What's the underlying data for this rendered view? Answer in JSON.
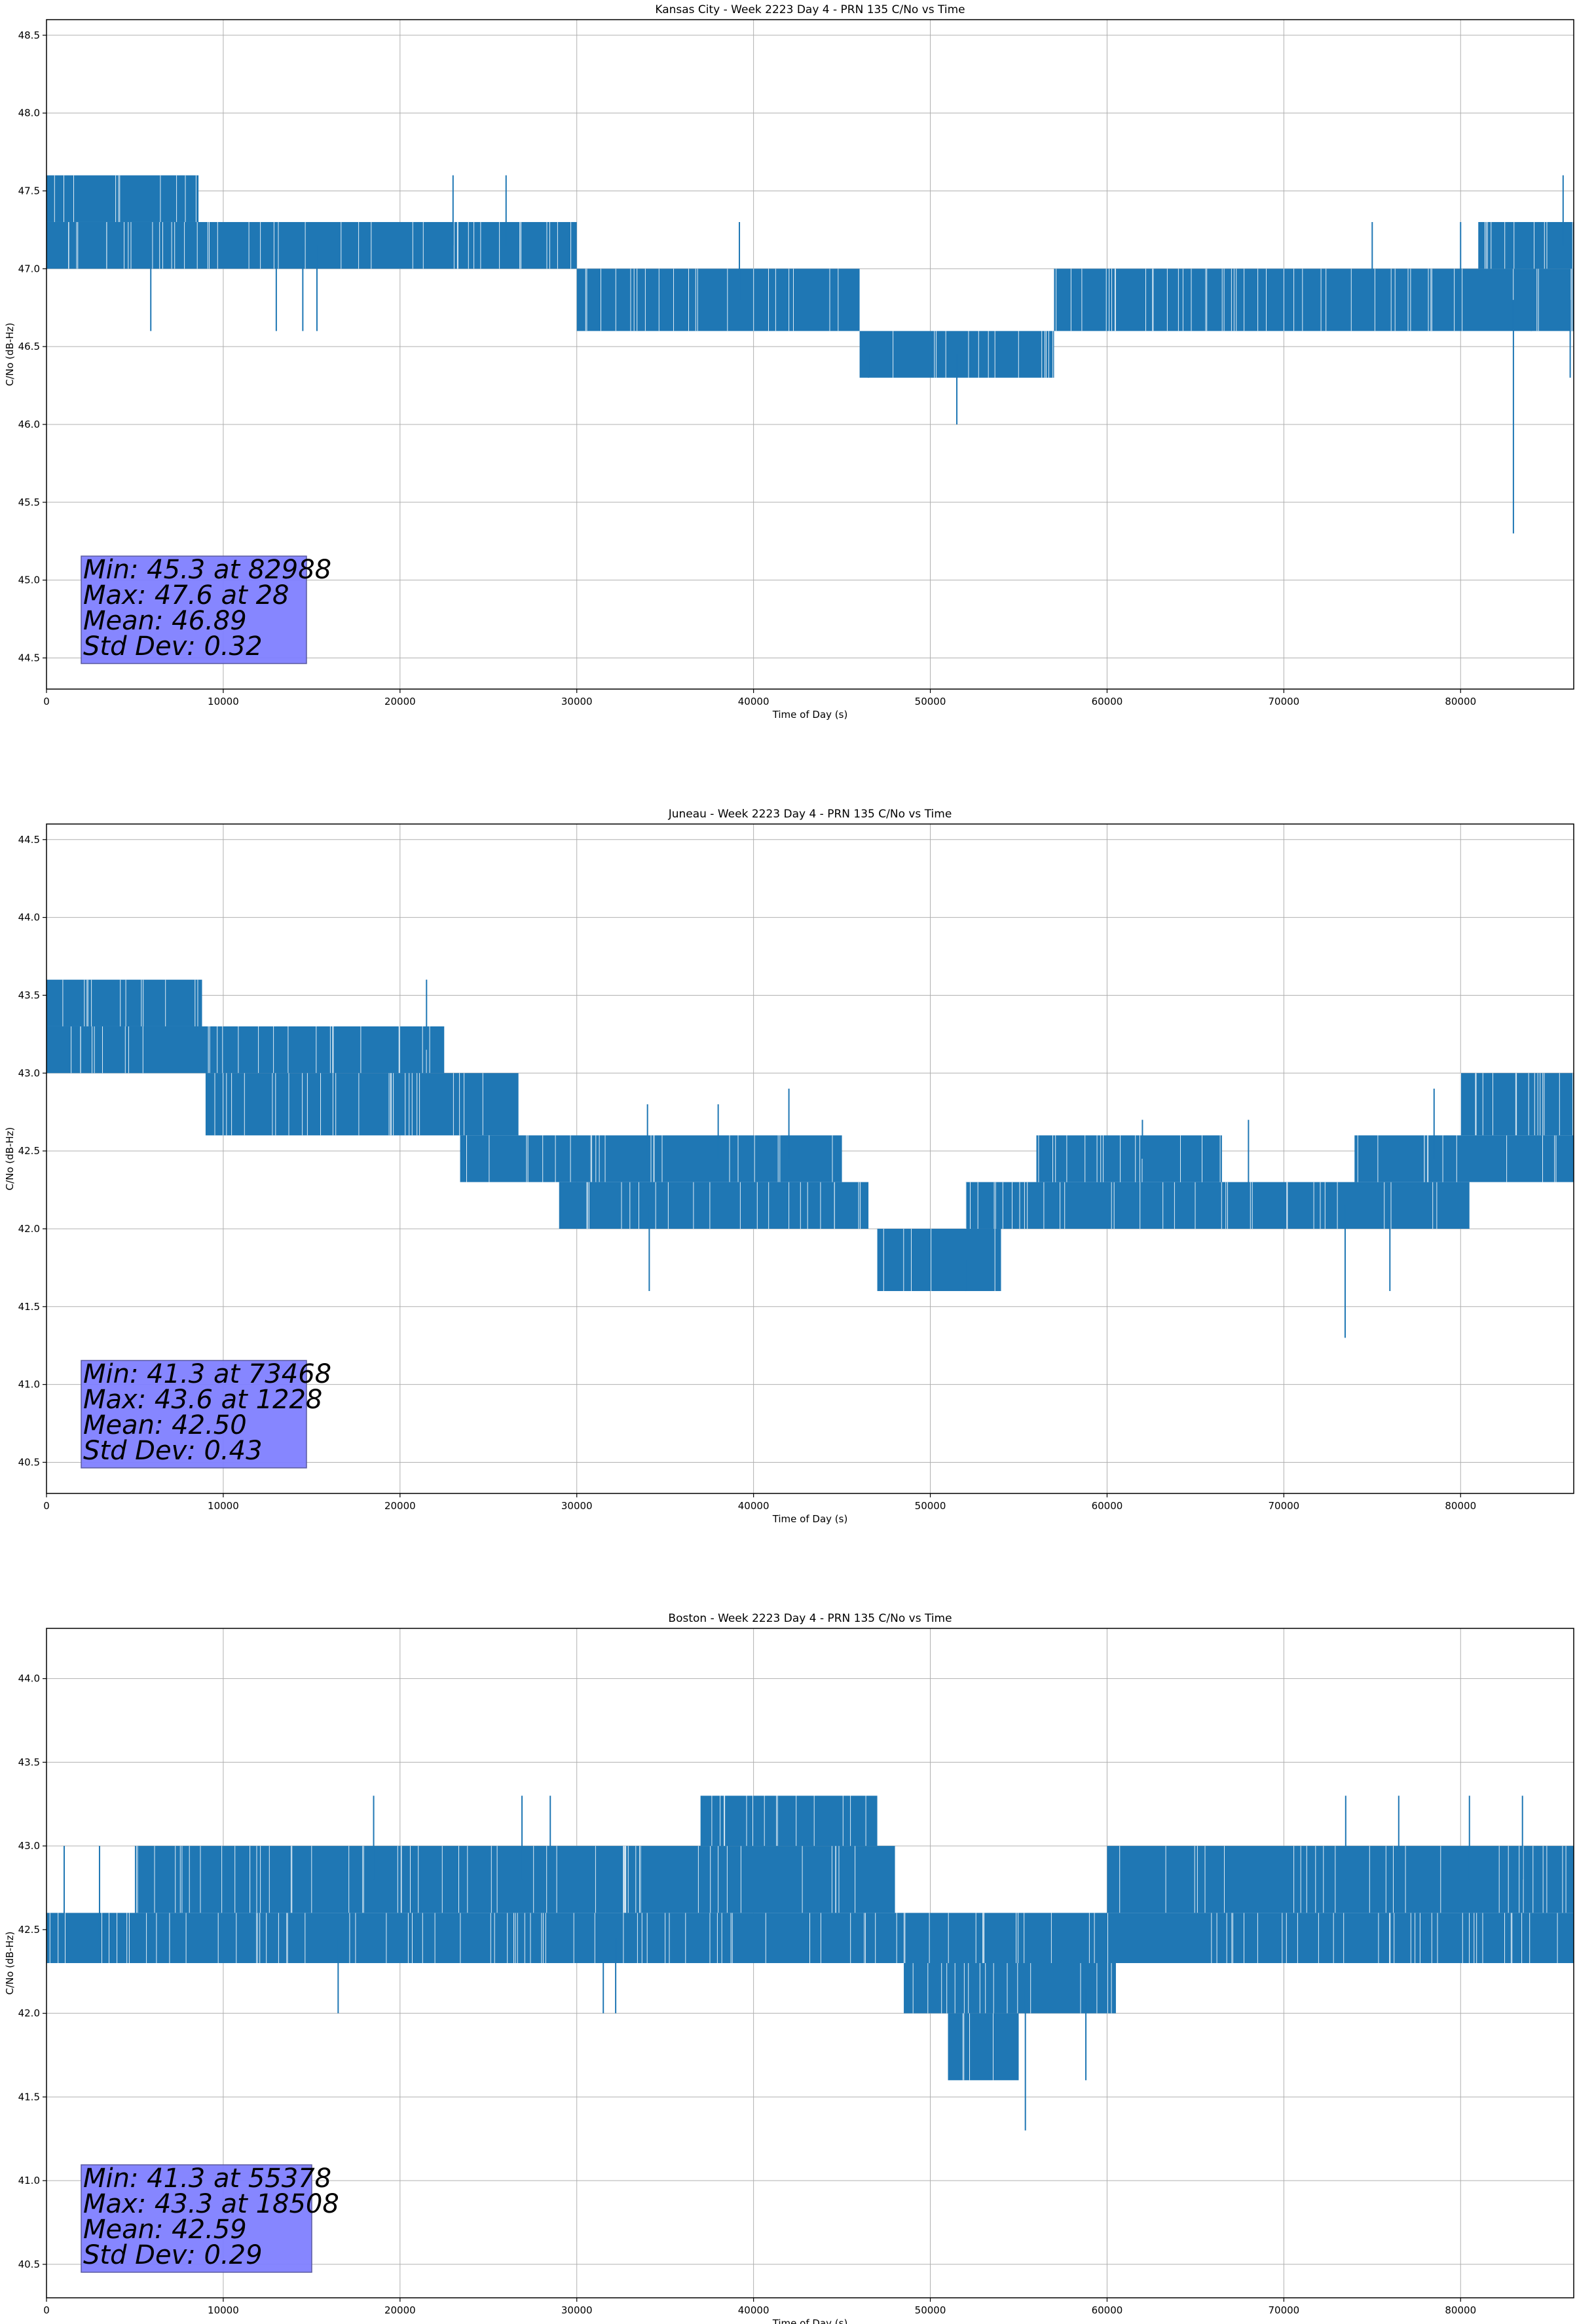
{
  "colors": {
    "line": "#1f77b4",
    "grid": "#b0b0b0",
    "stats_box_fill": "#8080ff",
    "stats_box_edge": "#5a5aa0"
  },
  "chart_data": [
    {
      "type": "line",
      "title": "Kansas City - Week 2223 Day 4 - PRN 135 C/No vs Time",
      "xlabel": "Time of Day (s)",
      "ylabel": "C/No (dB-Hz)",
      "xlim": [
        0,
        86400
      ],
      "ylim": [
        44.3,
        48.6
      ],
      "xticks": [
        0,
        10000,
        20000,
        30000,
        40000,
        50000,
        60000,
        70000,
        80000
      ],
      "yticks": [
        44.5,
        45.0,
        45.5,
        46.0,
        46.5,
        47.0,
        47.5,
        48.0,
        48.5
      ],
      "ytick_labels": [
        "44.5",
        "45.0",
        "45.5",
        "46.0",
        "46.5",
        "47.0",
        "47.5",
        "48.0",
        "48.5"
      ],
      "grid": true,
      "bands": [
        {
          "x": [
            0,
            8600
          ],
          "lo": 47.3,
          "hi": 47.6
        },
        {
          "x": [
            0,
            30000
          ],
          "lo": 47.0,
          "hi": 47.3
        },
        {
          "x": [
            30000,
            46000
          ],
          "lo": 46.6,
          "hi": 47.0
        },
        {
          "x": [
            46000,
            57000
          ],
          "lo": 46.3,
          "hi": 46.6
        },
        {
          "x": [
            57000,
            86400
          ],
          "lo": 46.6,
          "hi": 47.0
        },
        {
          "x": [
            81000,
            86400
          ],
          "lo": 47.0,
          "hi": 47.3
        }
      ],
      "spikes": [
        {
          "x": 5900,
          "y": 46.6
        },
        {
          "x": 13000,
          "y": 46.6
        },
        {
          "x": 14500,
          "y": 46.6
        },
        {
          "x": 15300,
          "y": 46.6
        },
        {
          "x": 23000,
          "y": 47.6
        },
        {
          "x": 26000,
          "y": 47.6
        },
        {
          "x": 39200,
          "y": 47.3
        },
        {
          "x": 46500,
          "y": 46.3
        },
        {
          "x": 51500,
          "y": 46.0
        },
        {
          "x": 75000,
          "y": 47.3
        },
        {
          "x": 80000,
          "y": 47.3
        },
        {
          "x": 82988,
          "y": 45.3
        },
        {
          "x": 84000,
          "y": 46.6
        },
        {
          "x": 85800,
          "y": 47.6
        },
        {
          "x": 86200,
          "y": 46.3
        }
      ],
      "stats": [
        "Min: 45.3 at 82988",
        "Max: 47.6 at 28",
        "Mean: 46.89",
        "Std Dev: 0.32"
      ]
    },
    {
      "type": "line",
      "title": "Juneau - Week 2223 Day 4 - PRN 135 C/No vs Time",
      "xlabel": "Time of Day (s)",
      "ylabel": "C/No (dB-Hz)",
      "xlim": [
        0,
        86400
      ],
      "ylim": [
        40.3,
        44.6
      ],
      "xticks": [
        0,
        10000,
        20000,
        30000,
        40000,
        50000,
        60000,
        70000,
        80000
      ],
      "yticks": [
        40.5,
        41.0,
        41.5,
        42.0,
        42.5,
        43.0,
        43.5,
        44.0,
        44.5
      ],
      "ytick_labels": [
        "40.5",
        "41.0",
        "41.5",
        "42.0",
        "42.5",
        "43.0",
        "43.5",
        "44.0",
        "44.5"
      ],
      "grid": true,
      "bands": [
        {
          "x": [
            0,
            8800
          ],
          "lo": 43.3,
          "hi": 43.6
        },
        {
          "x": [
            0,
            22500
          ],
          "lo": 43.0,
          "hi": 43.3
        },
        {
          "x": [
            9000,
            26700
          ],
          "lo": 42.6,
          "hi": 43.0
        },
        {
          "x": [
            23400,
            45000
          ],
          "lo": 42.3,
          "hi": 42.6
        },
        {
          "x": [
            29000,
            46500
          ],
          "lo": 42.0,
          "hi": 42.3
        },
        {
          "x": [
            47000,
            54000
          ],
          "lo": 41.6,
          "hi": 42.0
        },
        {
          "x": [
            52000,
            80500
          ],
          "lo": 42.0,
          "hi": 42.3
        },
        {
          "x": [
            56000,
            66500
          ],
          "lo": 42.3,
          "hi": 42.6
        },
        {
          "x": [
            74000,
            86400
          ],
          "lo": 42.3,
          "hi": 42.6
        },
        {
          "x": [
            80000,
            86400
          ],
          "lo": 42.6,
          "hi": 43.0
        }
      ],
      "spikes": [
        {
          "x": 21500,
          "y": 43.6
        },
        {
          "x": 34000,
          "y": 42.8
        },
        {
          "x": 34100,
          "y": 41.6
        },
        {
          "x": 38000,
          "y": 42.8
        },
        {
          "x": 42000,
          "y": 42.9
        },
        {
          "x": 52000,
          "y": 41.6
        },
        {
          "x": 62000,
          "y": 42.7
        },
        {
          "x": 68000,
          "y": 42.7
        },
        {
          "x": 73468,
          "y": 41.3
        },
        {
          "x": 76000,
          "y": 41.6
        },
        {
          "x": 78500,
          "y": 42.9
        }
      ],
      "stats": [
        "Min: 41.3 at 73468",
        "Max: 43.6 at 1228",
        "Mean: 42.50",
        "Std Dev: 0.43"
      ]
    },
    {
      "type": "line",
      "title": "Boston - Week 2223 Day 4 - PRN 135 C/No vs Time",
      "xlabel": "Time of Day (s)",
      "ylabel": "C/No (dB-Hz)",
      "xlim": [
        0,
        86400
      ],
      "ylim": [
        40.3,
        44.3
      ],
      "xticks": [
        0,
        10000,
        20000,
        30000,
        40000,
        50000,
        60000,
        70000,
        80000
      ],
      "yticks": [
        40.5,
        41.0,
        41.5,
        42.0,
        42.5,
        43.0,
        43.5,
        44.0
      ],
      "ytick_labels": [
        "40.5",
        "41.0",
        "41.5",
        "42.0",
        "42.5",
        "43.0",
        "43.5",
        "44.0"
      ],
      "grid": true,
      "bands": [
        {
          "x": [
            0,
            86400
          ],
          "lo": 42.3,
          "hi": 42.6
        },
        {
          "x": [
            5000,
            48000
          ],
          "lo": 42.6,
          "hi": 43.0
        },
        {
          "x": [
            37000,
            47000
          ],
          "lo": 43.0,
          "hi": 43.3
        },
        {
          "x": [
            48500,
            60500
          ],
          "lo": 42.0,
          "hi": 42.3
        },
        {
          "x": [
            51000,
            55000
          ],
          "lo": 41.6,
          "hi": 42.0
        },
        {
          "x": [
            60000,
            86400
          ],
          "lo": 42.6,
          "hi": 43.0
        }
      ],
      "spikes": [
        {
          "x": 1000,
          "y": 43.0
        },
        {
          "x": 3000,
          "y": 43.0
        },
        {
          "x": 16500,
          "y": 42.0
        },
        {
          "x": 18508,
          "y": 43.3
        },
        {
          "x": 26900,
          "y": 43.3
        },
        {
          "x": 28500,
          "y": 43.3
        },
        {
          "x": 31500,
          "y": 42.0
        },
        {
          "x": 32200,
          "y": 42.0
        },
        {
          "x": 55378,
          "y": 41.3
        },
        {
          "x": 58800,
          "y": 41.6
        },
        {
          "x": 73500,
          "y": 43.3
        },
        {
          "x": 76500,
          "y": 43.3
        },
        {
          "x": 80500,
          "y": 43.3
        },
        {
          "x": 83500,
          "y": 43.3
        }
      ],
      "stats": [
        "Min: 41.3 at 55378",
        "Max: 43.3 at 18508",
        "Mean: 42.59",
        "Std Dev: 0.29"
      ]
    }
  ]
}
